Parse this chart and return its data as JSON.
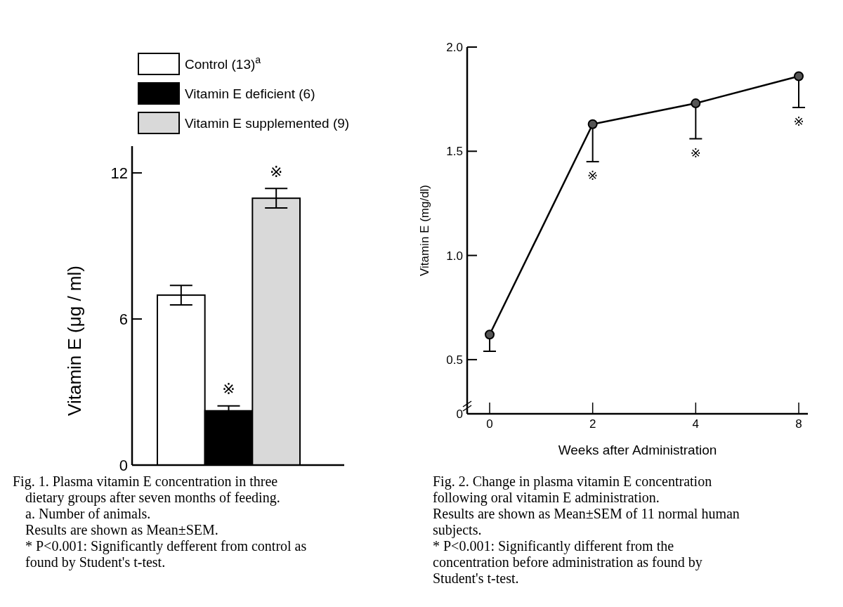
{
  "chart_data": [
    {
      "type": "bar",
      "ylabel": "Vitamin E (μg / ml)",
      "categories": [
        null,
        null,
        null
      ],
      "series": [
        {
          "name": "Control (13)$^{a}$",
          "color": "#ffffff",
          "values": [
            6.98,
            null,
            null
          ],
          "errors": [
            0.4,
            null,
            null
          ]
        },
        {
          "name": "Vitamin E deficient (6)",
          "color": "#000000",
          "values": [
            null,
            2.23,
            null
          ],
          "errors": [
            null,
            0.2,
            null
          ]
        },
        {
          "name": "Vitamin E supplemented (9)",
          "color": "#d9d9d9",
          "values": [
            null,
            null,
            10.96
          ],
          "errors": [
            null,
            null,
            0.4
          ]
        }
      ],
      "ylim": [
        0,
        13.1
      ],
      "yticks": [
        0,
        6,
        12
      ],
      "legend": "top",
      "annotations": [
        {
          "text": "※",
          "y": 2.43
        },
        {
          "text": "※",
          "y": 11.36
        },
        "Fig. 1.  Plasma vitamin E concentration in three dietary groups after seven months of feeding.",
        "a. Number of animals.",
        "Results are shown as Mean±SEM.",
        "* P<0.001: Significantly defferent from control as found by Student's t-test."
      ]
    },
    {
      "type": "line",
      "ylabel": "Vitamin E (mg/dl)",
      "xlabel": "Weeks after Administration",
      "categories": [
        "0",
        "2",
        "4",
        "8"
      ],
      "series": [
        {
          "color": "#000000",
          "values": [
            0.62,
            1.63,
            1.73,
            1.86
          ],
          "errors": [
            [
              0.54,
              0.62
            ],
            [
              1.45,
              1.63
            ],
            [
              1.56,
              1.73
            ],
            [
              1.71,
              1.86
            ]
          ]
        }
      ],
      "ylim": [
        0.24,
        2.0
      ],
      "yticks": [
        {
          "value": 0.24,
          "label": "0"
        },
        0.5,
        {
          "value": 1,
          "label": "1.0"
        },
        1.5,
        {
          "value": 2,
          "label": "2.0"
        }
      ],
      "marker": "circle",
      "line_style": "solid",
      "annotations": [
        {
          "text": "※",
          "x": "2",
          "y": 1.45
        },
        {
          "text": "※",
          "x": "4",
          "y": 1.56
        },
        {
          "text": "※",
          "x": "8",
          "y": 1.71
        },
        "Fig. 2.  Change in plasma vitamin E concentration following oral vitamin E administration.",
        "Results are shown as Mean±SEM of 11 normal human subjects.",
        "* P<0.001: Significantly different from the concentration before administration as found by Student's t-test."
      ]
    }
  ]
}
